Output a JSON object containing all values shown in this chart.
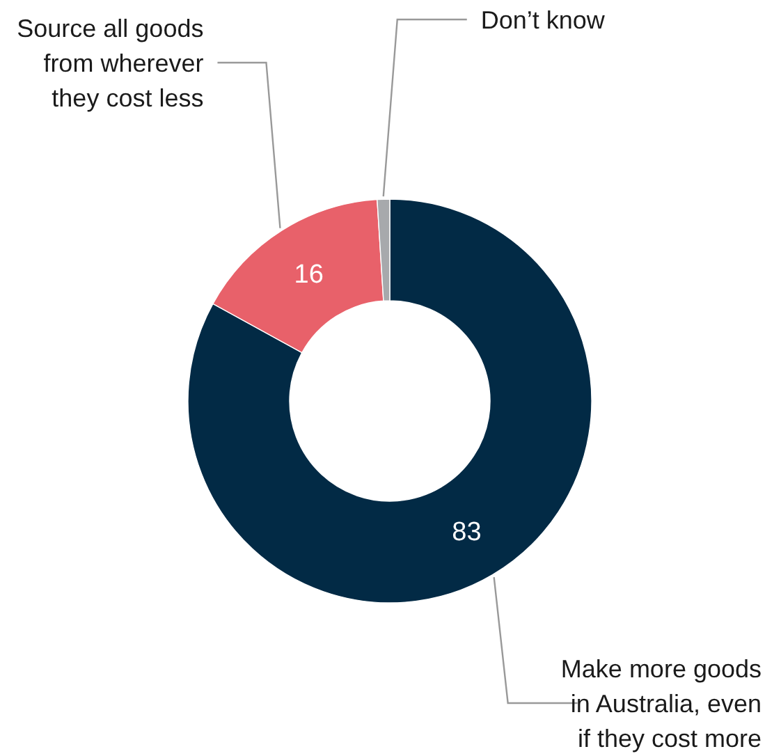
{
  "chart_data": {
    "type": "donut",
    "categories": [
      "Make more goods\nin Australia, even\nif they cost more",
      "Source all goods\nfrom wherever\nthey cost less",
      "Don’t know"
    ],
    "values": [
      83,
      16,
      1
    ],
    "colors": [
      "#022a45",
      "#e8616a",
      "#a7a9ac"
    ],
    "value_labels": [
      "83",
      "16",
      null
    ]
  }
}
